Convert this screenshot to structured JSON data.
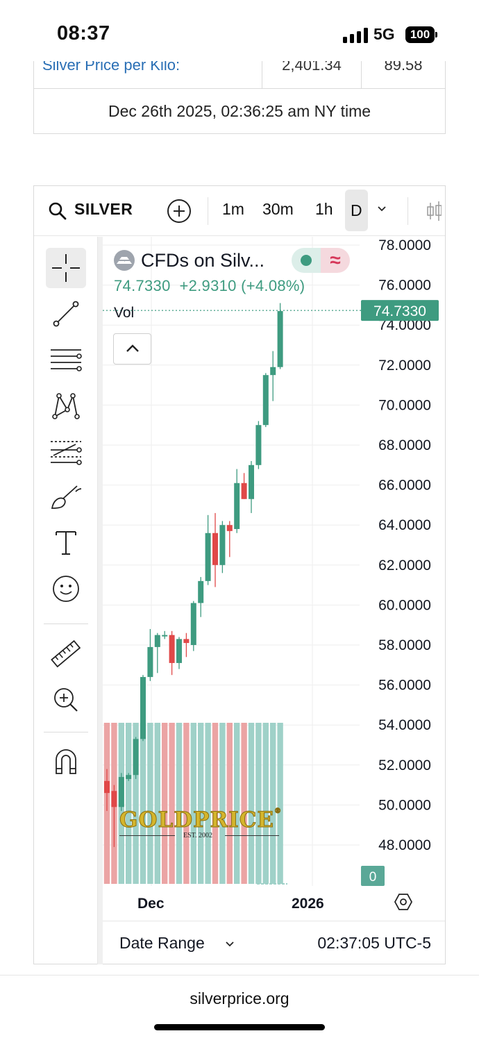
{
  "status_bar": {
    "time": "08:37",
    "network": "5G",
    "battery": "100"
  },
  "price_table": {
    "partial_row": {
      "label": "Silver Price per Kilo:",
      "value": "2,401.34",
      "change": "89.58"
    },
    "timestamp": "Dec 26th 2025, 02:36:25 am NY time"
  },
  "toolbar": {
    "symbol": "SILVER",
    "intervals": [
      "1m",
      "30m",
      "1h",
      "D"
    ],
    "active_interval": "D"
  },
  "legend": {
    "title": "CFDs on Silv...",
    "last": "74.7330",
    "change": "+2.9310",
    "change_pct": "(+4.08%)",
    "vol_label": "Vol",
    "status_symbol": "≈"
  },
  "watermark": {
    "brand": "GOLDPRICE",
    "mark": "®",
    "est": "EST. 2002"
  },
  "chart_data": {
    "type": "candlestick",
    "symbol": "CFDs on Silver",
    "interval": "D",
    "y_ticks": [
      78,
      76,
      74,
      72,
      70,
      68,
      66,
      64,
      62,
      60,
      58,
      56,
      54,
      52,
      50,
      48
    ],
    "y_tick_labels": [
      "78.0000",
      "76.0000",
      "74.0000",
      "72.0000",
      "70.0000",
      "68.0000",
      "66.0000",
      "64.0000",
      "62.0000",
      "60.0000",
      "58.0000",
      "56.0000",
      "54.0000",
      "52.0000",
      "50.0000",
      "48.0000"
    ],
    "ylim": [
      46.0,
      78.3
    ],
    "last_price_label": "74.7330",
    "last_price": 74.733,
    "volume_label": "0",
    "x_labels": [
      "Dec",
      "2026"
    ],
    "colors": {
      "up": "#3e9b80",
      "down": "#e04848",
      "vol_up": "#9fd1c8",
      "vol_down": "#eba4a4"
    },
    "candles": [
      {
        "o": 51.2,
        "h": 51.8,
        "l": 49.7,
        "c": 50.6
      },
      {
        "o": 50.7,
        "h": 51.0,
        "l": 47.9,
        "c": 49.9
      },
      {
        "o": 49.9,
        "h": 51.6,
        "l": 49.7,
        "c": 51.4
      },
      {
        "o": 51.3,
        "h": 51.6,
        "l": 51.2,
        "c": 51.5
      },
      {
        "o": 51.5,
        "h": 53.4,
        "l": 51.3,
        "c": 53.3
      },
      {
        "o": 53.3,
        "h": 56.5,
        "l": 53.2,
        "c": 56.4
      },
      {
        "o": 56.4,
        "h": 58.8,
        "l": 56.2,
        "c": 57.9
      },
      {
        "o": 57.9,
        "h": 58.6,
        "l": 56.6,
        "c": 58.5
      },
      {
        "o": 58.5,
        "h": 58.7,
        "l": 58.3,
        "c": 58.5
      },
      {
        "o": 58.5,
        "h": 58.7,
        "l": 56.5,
        "c": 57.1
      },
      {
        "o": 57.1,
        "h": 58.4,
        "l": 56.8,
        "c": 58.3
      },
      {
        "o": 58.3,
        "h": 58.6,
        "l": 57.4,
        "c": 58.1
      },
      {
        "o": 58.0,
        "h": 60.2,
        "l": 57.7,
        "c": 60.1
      },
      {
        "o": 60.1,
        "h": 61.4,
        "l": 59.4,
        "c": 61.2
      },
      {
        "o": 61.2,
        "h": 64.5,
        "l": 61.0,
        "c": 63.6
      },
      {
        "o": 63.6,
        "h": 64.6,
        "l": 60.9,
        "c": 62.0
      },
      {
        "o": 62.0,
        "h": 64.2,
        "l": 61.6,
        "c": 64.0
      },
      {
        "o": 64.0,
        "h": 64.2,
        "l": 62.4,
        "c": 63.7
      },
      {
        "o": 63.8,
        "h": 66.8,
        "l": 63.6,
        "c": 66.1
      },
      {
        "o": 66.1,
        "h": 66.6,
        "l": 65.3,
        "c": 65.3
      },
      {
        "o": 65.3,
        "h": 67.2,
        "l": 64.6,
        "c": 67.0
      },
      {
        "o": 67.0,
        "h": 69.2,
        "l": 66.8,
        "c": 69.0
      },
      {
        "o": 69.0,
        "h": 71.6,
        "l": 68.9,
        "c": 71.5
      },
      {
        "o": 71.5,
        "h": 72.7,
        "l": 70.2,
        "c": 71.9
      },
      {
        "o": 71.9,
        "h": 75.1,
        "l": 71.8,
        "c": 74.7
      }
    ],
    "volume_bars": [
      "down",
      "down",
      "up",
      "up",
      "up",
      "up",
      "up",
      "up",
      "down",
      "down",
      "up",
      "down",
      "up",
      "up",
      "up",
      "down",
      "up",
      "down",
      "up",
      "down",
      "up",
      "up",
      "up",
      "up",
      "up"
    ]
  },
  "bottom_bar": {
    "date_range": "Date Range",
    "clock": "02:37:05 UTC-5"
  },
  "footer": {
    "url": "silverprice.org"
  }
}
